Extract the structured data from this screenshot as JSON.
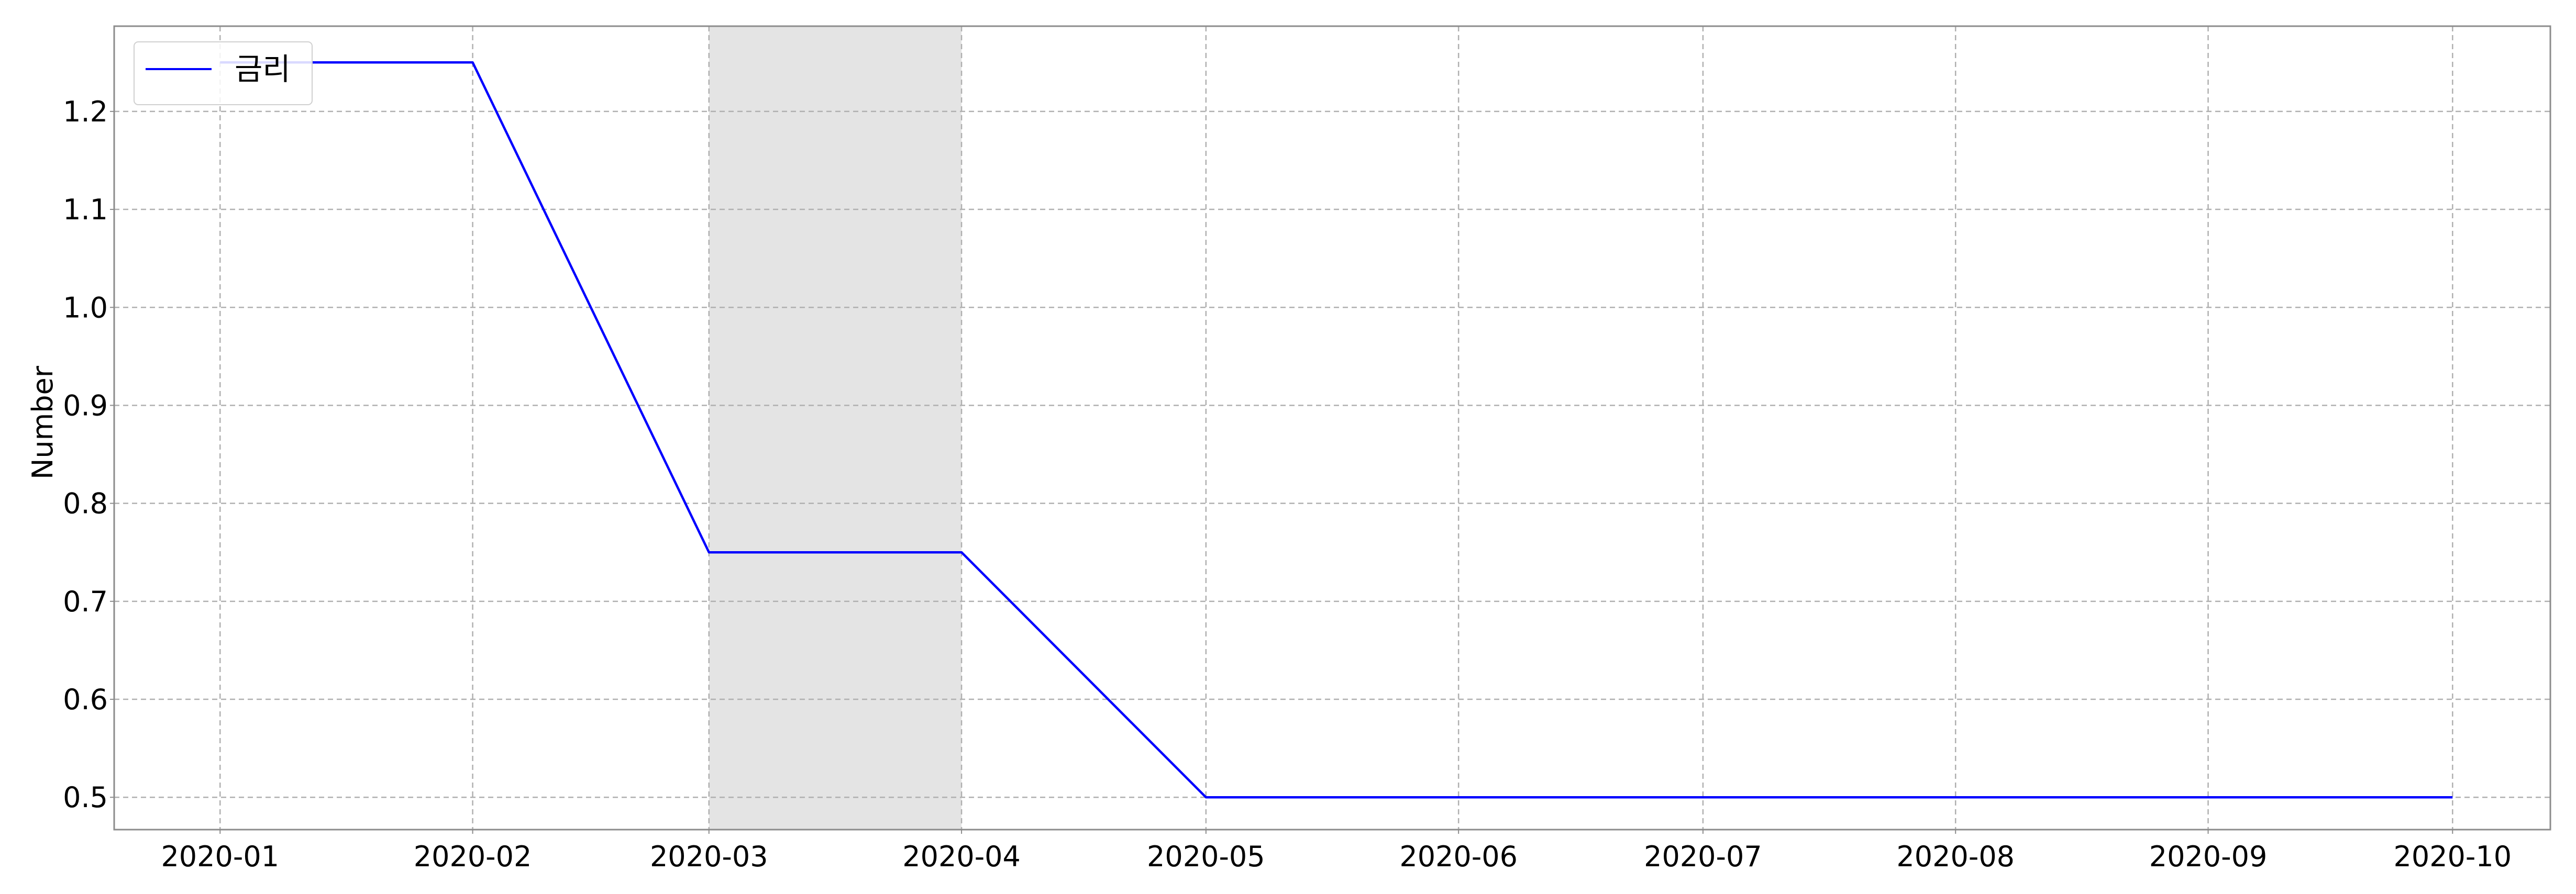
{
  "chart_data": {
    "type": "line",
    "title": "",
    "xlabel": "",
    "ylabel": "Number",
    "x": [
      "2020-01-01",
      "2020-02-01",
      "2020-03-01",
      "2020-04-01",
      "2020-05-01",
      "2020-06-01",
      "2020-07-01",
      "2020-08-01",
      "2020-09-01",
      "2020-10-01"
    ],
    "x_ticks": [
      "2020-01",
      "2020-02",
      "2020-03",
      "2020-04",
      "2020-05",
      "2020-06",
      "2020-07",
      "2020-08",
      "2020-09",
      "2020-10"
    ],
    "series": [
      {
        "name": "금리",
        "color": "#0000ff",
        "values": [
          1.25,
          1.25,
          0.75,
          0.75,
          0.5,
          0.5,
          0.5,
          0.5,
          0.5,
          0.5
        ]
      }
    ],
    "y_ticks": [
      0.5,
      0.6,
      0.7,
      0.8,
      0.9,
      1.0,
      1.1,
      1.2
    ],
    "ylim": [
      0.467,
      1.287
    ],
    "xlim": [
      "2019-12-19",
      "2020-10-13"
    ],
    "shaded_region": {
      "from": "2020-03-01",
      "to": "2020-04-01",
      "color": "#e4e4e4"
    },
    "grid": true,
    "legend_position": "top-left"
  }
}
